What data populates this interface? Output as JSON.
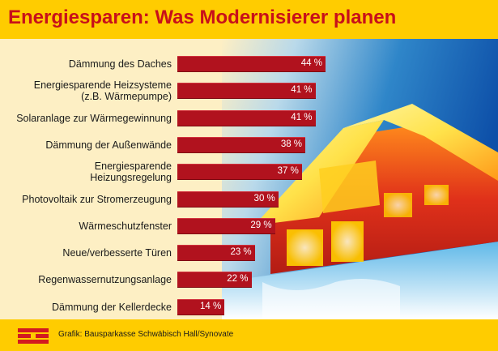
{
  "header": {
    "title": "Energiesparen: Was Modernisierer planen"
  },
  "chart_data": {
    "type": "bar",
    "orientation": "horizontal",
    "categories": [
      [
        "Dämmung des Daches"
      ],
      [
        "Energiesparende Heizsysteme",
        "(z.B. Wärmepumpe)"
      ],
      [
        "Solaranlage zur Wärmegewinnung"
      ],
      [
        "Dämmung der Außenwände"
      ],
      [
        "Energiesparende",
        "Heizungsregelung"
      ],
      [
        "Photovoltaik zur Stromerzeugung"
      ],
      [
        "Wärmeschutzfenster"
      ],
      [
        "Neue/verbesserte Türen"
      ],
      [
        "Regenwassernutzungsanlage"
      ],
      [
        "Dämmung der Kellerdecke"
      ]
    ],
    "values": [
      44,
      41,
      41,
      38,
      37,
      30,
      29,
      23,
      22,
      14
    ],
    "value_labels": [
      "44 %",
      "41 %",
      "41 %",
      "38 %",
      "37 %",
      "30 %",
      "29 %",
      "23 %",
      "22 %",
      "14 %"
    ],
    "unit": "%",
    "xlim": [
      0,
      44
    ],
    "bar_color": "#b1121e",
    "grid": false,
    "legend": "none"
  },
  "footer": {
    "source": "Grafik: Bausparkasse Schwäbisch Hall/Synovate"
  },
  "colors": {
    "header_bg": "#ffcc00",
    "title": "#c8101a",
    "page_bg": "#fdefc4",
    "logo_red": "#d31a1f"
  }
}
